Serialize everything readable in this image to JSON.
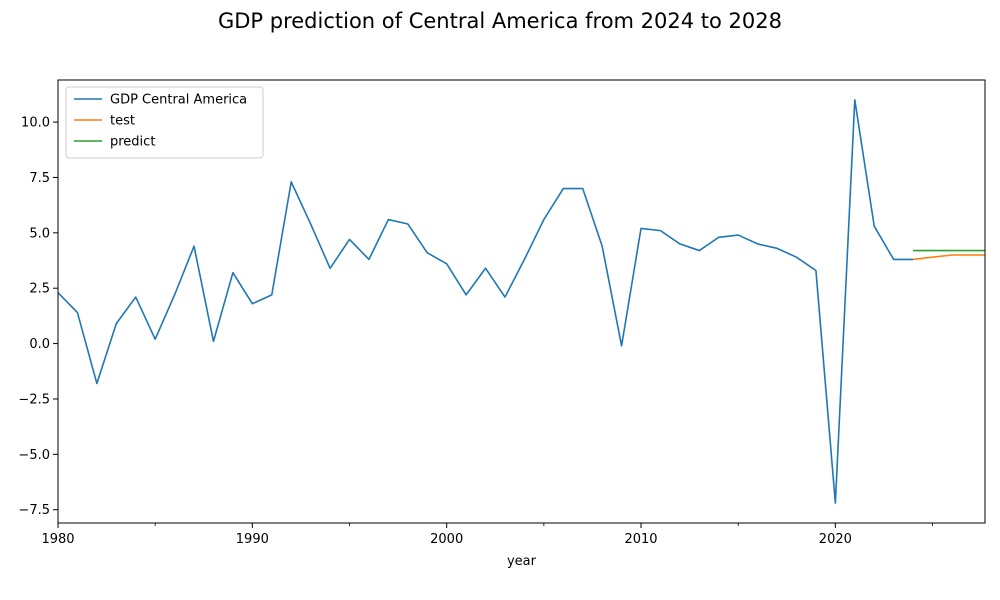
{
  "chart_data": {
    "type": "line",
    "title": "GDP prediction of Central America from 2024 to 2028",
    "xlabel": "year",
    "ylabel": "",
    "xlim": [
      1980,
      2027.7
    ],
    "ylim": [
      -8.1,
      11.9
    ],
    "x_ticks_major": [
      1980,
      1990,
      2000,
      2010,
      2020
    ],
    "x_ticks_major_labels": [
      "1980",
      "1990",
      "2000",
      "2010",
      "2020"
    ],
    "x_ticks_minor": [
      1985,
      1995,
      2005,
      2015,
      2025
    ],
    "y_ticks": [
      -7.5,
      -5.0,
      -2.5,
      0.0,
      2.5,
      5.0,
      7.5,
      10.0
    ],
    "y_tick_labels": [
      "−7.5",
      "−5.0",
      "−2.5",
      "0.0",
      "2.5",
      "5.0",
      "7.5",
      "10.0"
    ],
    "grid": false,
    "legend_position": "top-left",
    "series": [
      {
        "name": "GDP Central America",
        "color": "#1f77b4",
        "x": [
          1980,
          1981,
          1982,
          1983,
          1984,
          1985,
          1986,
          1987,
          1988,
          1989,
          1990,
          1991,
          1992,
          1993,
          1994,
          1995,
          1996,
          1997,
          1998,
          1999,
          2000,
          2001,
          2002,
          2003,
          2004,
          2005,
          2006,
          2007,
          2008,
          2009,
          2010,
          2011,
          2012,
          2013,
          2014,
          2015,
          2016,
          2017,
          2018,
          2019,
          2020,
          2021,
          2022,
          2023,
          2024
        ],
        "values": [
          2.3,
          1.4,
          -1.8,
          0.9,
          2.1,
          0.2,
          2.2,
          4.4,
          0.1,
          3.2,
          1.8,
          2.2,
          7.3,
          5.4,
          3.4,
          4.7,
          3.8,
          5.6,
          5.4,
          4.1,
          3.6,
          2.2,
          3.4,
          2.1,
          3.8,
          5.6,
          7.0,
          7.0,
          4.4,
          -0.1,
          5.2,
          5.1,
          4.5,
          4.2,
          4.8,
          4.9,
          4.5,
          4.3,
          3.9,
          3.3,
          -7.2,
          11.0,
          5.3,
          3.8,
          3.8
        ]
      },
      {
        "name": "test",
        "color": "#ff7f0e",
        "x": [
          2024,
          2025,
          2026,
          2027,
          2028
        ],
        "values": [
          3.8,
          3.9,
          4.0,
          4.0,
          4.0
        ]
      },
      {
        "name": "predict",
        "color": "#2ca02c",
        "x": [
          2024,
          2025,
          2026,
          2027,
          2028
        ],
        "values": [
          4.2,
          4.2,
          4.2,
          4.2,
          4.2
        ]
      }
    ]
  }
}
